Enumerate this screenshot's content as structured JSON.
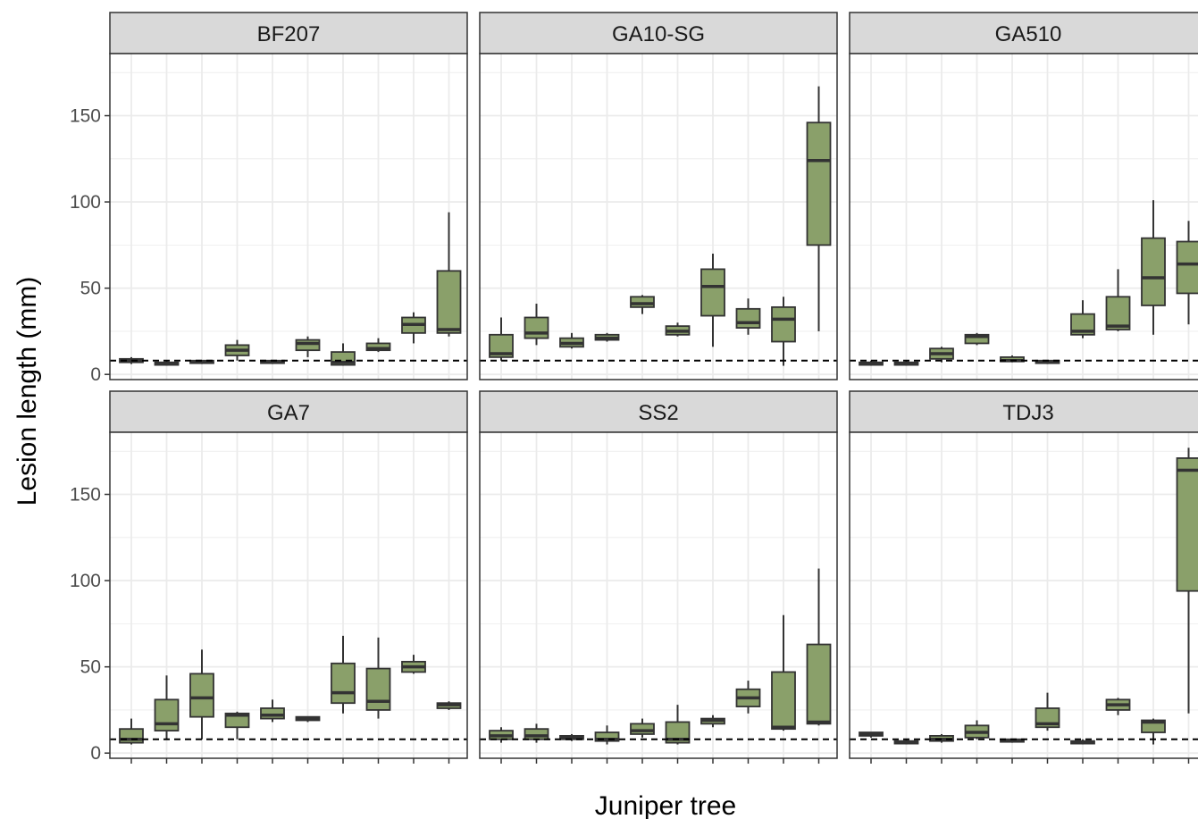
{
  "chart_data": {
    "type": "boxplot",
    "xlabel": "Juniper tree",
    "ylabel": "Lesion length (mm)",
    "ylim": [
      -3,
      186
    ],
    "y_ticks": [
      0,
      50,
      100,
      150
    ],
    "reference_line": 8,
    "grid": true,
    "colors": {
      "box_fill": "#8aa06a",
      "box_stroke": "#333333",
      "strip_fill": "#d9d9d9",
      "panel_border": "#333333",
      "grid": "#ebebeb",
      "reference_line": "#000000"
    },
    "panels": [
      {
        "title": "BF207",
        "boxes": [
          {
            "min": 6,
            "q1": 7,
            "median": 8,
            "q3": 9,
            "max": 10
          },
          {
            "min": 5,
            "q1": 5.5,
            "median": 6,
            "q3": 7,
            "max": 8
          },
          {
            "min": 6,
            "q1": 6.5,
            "median": 7,
            "q3": 8,
            "max": 8
          },
          {
            "min": 8,
            "q1": 11,
            "median": 14,
            "q3": 17,
            "max": 20
          },
          {
            "min": 6,
            "q1": 6.5,
            "median": 7,
            "q3": 8,
            "max": 8
          },
          {
            "min": 10,
            "q1": 14,
            "median": 18,
            "q3": 20,
            "max": 22
          },
          {
            "min": 5,
            "q1": 5.5,
            "median": 7,
            "q3": 13,
            "max": 18
          },
          {
            "min": 13,
            "q1": 14,
            "median": 15,
            "q3": 18,
            "max": 21
          },
          {
            "min": 18,
            "q1": 24,
            "median": 29,
            "q3": 33,
            "max": 36
          },
          {
            "min": 22,
            "q1": 24,
            "median": 26,
            "q3": 60,
            "max": 94
          }
        ]
      },
      {
        "title": "GA10-SG",
        "boxes": [
          {
            "min": 8,
            "q1": 10,
            "median": 12,
            "q3": 23,
            "max": 33
          },
          {
            "min": 17,
            "q1": 21,
            "median": 24,
            "q3": 33,
            "max": 41
          },
          {
            "min": 15,
            "q1": 16,
            "median": 18,
            "q3": 21,
            "max": 24
          },
          {
            "min": 19,
            "q1": 20,
            "median": 21,
            "q3": 23,
            "max": 24
          },
          {
            "min": 35,
            "q1": 39,
            "median": 41,
            "q3": 45,
            "max": 46
          },
          {
            "min": 22,
            "q1": 23,
            "median": 25,
            "q3": 28,
            "max": 30
          },
          {
            "min": 16,
            "q1": 34,
            "median": 51,
            "q3": 61,
            "max": 70
          },
          {
            "min": 23,
            "q1": 27,
            "median": 30,
            "q3": 38,
            "max": 44
          },
          {
            "min": 5,
            "q1": 19,
            "median": 32,
            "q3": 39,
            "max": 45
          },
          {
            "min": 25,
            "q1": 75,
            "median": 124,
            "q3": 146,
            "max": 167
          }
        ]
      },
      {
        "title": "GA510",
        "boxes": [
          {
            "min": 5,
            "q1": 5.5,
            "median": 6,
            "q3": 7,
            "max": 8
          },
          {
            "min": 5,
            "q1": 5.5,
            "median": 6,
            "q3": 7,
            "max": 8
          },
          {
            "min": 7,
            "q1": 9,
            "median": 12,
            "q3": 15,
            "max": 16
          },
          {
            "min": 17,
            "q1": 18,
            "median": 22,
            "q3": 23,
            "max": 24
          },
          {
            "min": 7,
            "q1": 7.5,
            "median": 8,
            "q3": 10,
            "max": 11
          },
          {
            "min": 6,
            "q1": 6.5,
            "median": 7,
            "q3": 8,
            "max": 8
          },
          {
            "min": 21,
            "q1": 23,
            "median": 25,
            "q3": 35,
            "max": 43
          },
          {
            "min": 25,
            "q1": 26,
            "median": 28,
            "q3": 45,
            "max": 61
          },
          {
            "min": 23,
            "q1": 40,
            "median": 56,
            "q3": 79,
            "max": 101
          },
          {
            "min": 29,
            "q1": 47,
            "median": 64,
            "q3": 77,
            "max": 89
          }
        ]
      },
      {
        "title": "GA7",
        "boxes": [
          {
            "min": 5,
            "q1": 6,
            "median": 8,
            "q3": 14,
            "max": 20
          },
          {
            "min": 8,
            "q1": 13,
            "median": 17,
            "q3": 31,
            "max": 45
          },
          {
            "min": 8,
            "q1": 21,
            "median": 32,
            "q3": 46,
            "max": 60
          },
          {
            "min": 8,
            "q1": 15,
            "median": 22,
            "q3": 23,
            "max": 24
          },
          {
            "min": 18,
            "q1": 20,
            "median": 22,
            "q3": 26,
            "max": 31
          },
          {
            "min": 18,
            "q1": 19,
            "median": 20,
            "q3": 21,
            "max": 21
          },
          {
            "min": 23,
            "q1": 29,
            "median": 35,
            "q3": 52,
            "max": 68
          },
          {
            "min": 20,
            "q1": 25,
            "median": 30,
            "q3": 49,
            "max": 67
          },
          {
            "min": 46,
            "q1": 47,
            "median": 50,
            "q3": 53,
            "max": 57
          },
          {
            "min": 25,
            "q1": 26,
            "median": 28,
            "q3": 29,
            "max": 30
          }
        ]
      },
      {
        "title": "SS2",
        "boxes": [
          {
            "min": 6,
            "q1": 8,
            "median": 10,
            "q3": 13,
            "max": 15
          },
          {
            "min": 6,
            "q1": 8,
            "median": 10,
            "q3": 14,
            "max": 17
          },
          {
            "min": 7,
            "q1": 8,
            "median": 9,
            "q3": 10,
            "max": 11
          },
          {
            "min": 5,
            "q1": 7,
            "median": 8,
            "q3": 12,
            "max": 16
          },
          {
            "min": 9,
            "q1": 11,
            "median": 13,
            "q3": 17,
            "max": 20
          },
          {
            "min": 5,
            "q1": 6,
            "median": 8,
            "q3": 18,
            "max": 28
          },
          {
            "min": 15,
            "q1": 17,
            "median": 19,
            "q3": 20,
            "max": 22
          },
          {
            "min": 23,
            "q1": 27,
            "median": 32,
            "q3": 37,
            "max": 42
          },
          {
            "min": 13,
            "q1": 14,
            "median": 15,
            "q3": 47,
            "max": 80
          },
          {
            "min": 16,
            "q1": 17,
            "median": 18,
            "q3": 63,
            "max": 107
          }
        ]
      },
      {
        "title": "TDJ3",
        "boxes": [
          {
            "min": 9,
            "q1": 10,
            "median": 11,
            "q3": 12,
            "max": 12
          },
          {
            "min": 5,
            "q1": 5.5,
            "median": 6,
            "q3": 7,
            "max": 8
          },
          {
            "min": 6,
            "q1": 7,
            "median": 8,
            "q3": 10,
            "max": 11
          },
          {
            "min": 8,
            "q1": 9,
            "median": 12,
            "q3": 16,
            "max": 19
          },
          {
            "min": 6,
            "q1": 6.5,
            "median": 7,
            "q3": 8,
            "max": 8
          },
          {
            "min": 13,
            "q1": 15,
            "median": 17,
            "q3": 26,
            "max": 35
          },
          {
            "min": 5,
            "q1": 5.5,
            "median": 6,
            "q3": 7,
            "max": 8
          },
          {
            "min": 22,
            "q1": 25,
            "median": 28,
            "q3": 31,
            "max": 32
          },
          {
            "min": 5,
            "q1": 12,
            "median": 18,
            "q3": 19,
            "max": 20
          },
          {
            "min": 23,
            "q1": 94,
            "median": 164,
            "q3": 171,
            "max": 177
          }
        ]
      }
    ]
  }
}
